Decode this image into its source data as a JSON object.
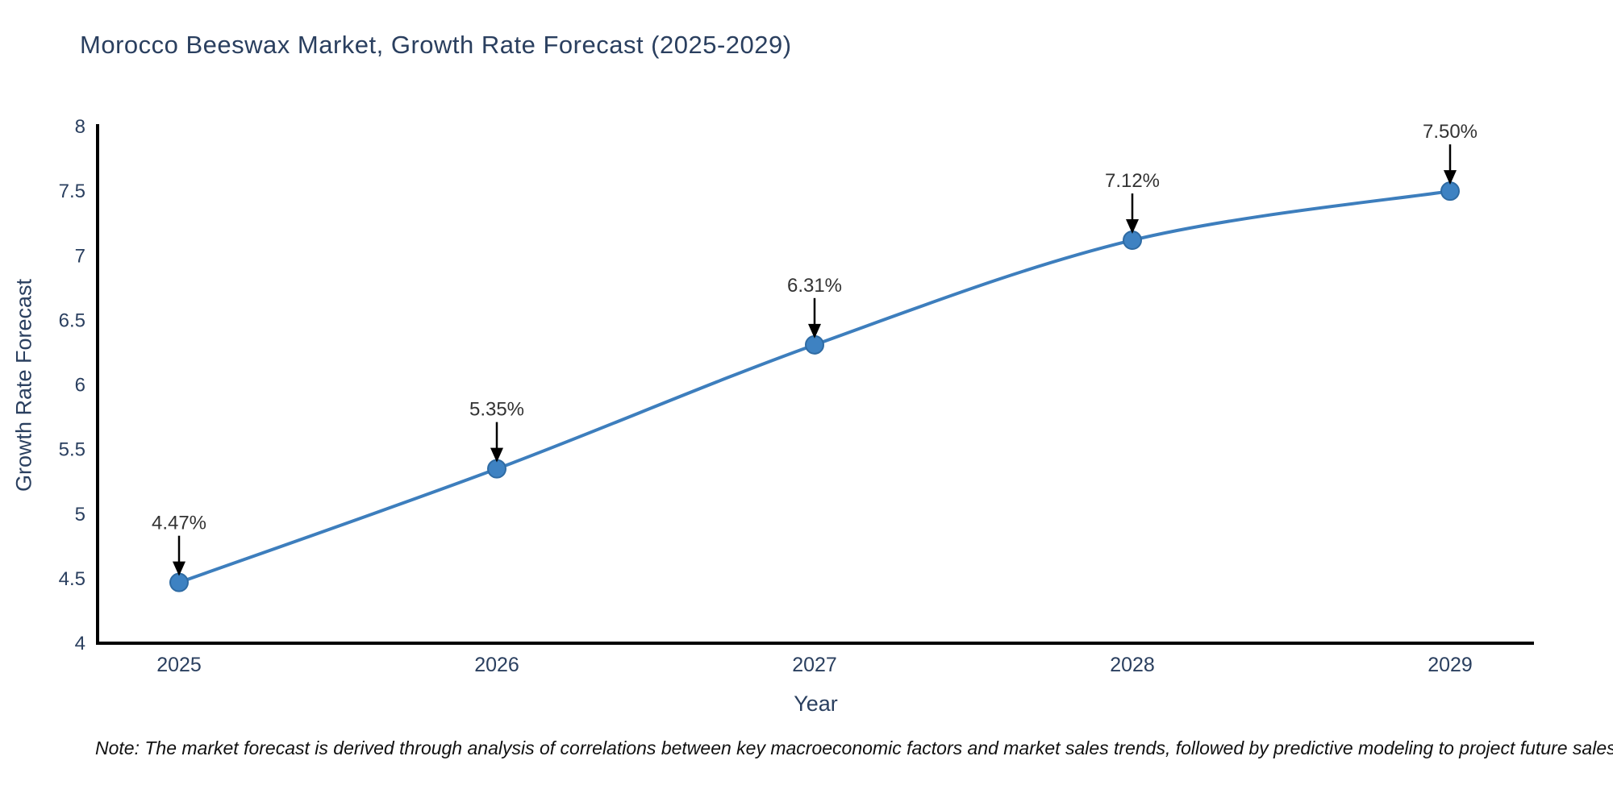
{
  "page": {
    "note": "Note: The market forecast is derived through analysis of correlations between key macroeconomic factors and market sales trends, followed by predictive modeling to project future sales"
  },
  "chart_data": {
    "type": "line",
    "title": "Morocco Beeswax Market, Growth Rate Forecast (2025-2029)",
    "xlabel": "Year",
    "ylabel": "Growth Rate Forecast",
    "categories": [
      "2025",
      "2026",
      "2027",
      "2028",
      "2029"
    ],
    "values": [
      4.47,
      5.35,
      6.31,
      7.12,
      7.5
    ],
    "point_labels": [
      "4.47%",
      "5.35%",
      "6.31%",
      "7.12%",
      "7.50%"
    ],
    "ylim": [
      4,
      8
    ],
    "yticks": [
      4,
      4.5,
      5,
      5.5,
      6,
      6.5,
      7,
      7.5,
      8
    ],
    "grid": false,
    "legend_position": "none",
    "colors": {
      "line": "#3d7ebd",
      "marker_fill": "#3e82c2",
      "marker_edge": "#2f6ba3",
      "axis": "#000000",
      "tick_text": "#2a3f5f",
      "annotation_text": "#333333",
      "arrow": "#000000"
    }
  }
}
